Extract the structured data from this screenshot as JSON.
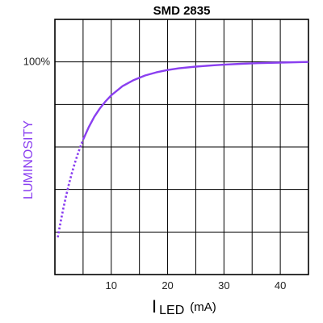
{
  "chart_data": {
    "type": "line",
    "title": "SMD 2835",
    "ylabel": "LUMINOSITY",
    "xlabel": {
      "main": "I",
      "subscript": "LED",
      "unit": "(mA)"
    },
    "xlim": [
      0,
      45
    ],
    "ylim": [
      0,
      120
    ],
    "x_ticks": [
      10,
      20,
      30,
      40
    ],
    "x_tick_labels": [
      "10",
      "20",
      "30",
      "40"
    ],
    "y_ticks": [
      100
    ],
    "y_tick_labels": [
      "100%"
    ],
    "grid": true,
    "curve_color": "#8a3ff0",
    "series": [
      {
        "x": [
          0.5,
          1,
          1.5,
          2,
          2.5,
          3,
          3.5,
          4,
          4.5,
          5,
          6,
          7,
          8,
          9,
          10,
          12,
          14,
          16,
          18,
          20,
          22,
          25,
          28,
          30,
          33,
          36,
          40,
          45
        ],
        "y": [
          17.5,
          24.6,
          31.2,
          37.2,
          42.6,
          47.6,
          52.1,
          56.2,
          60.0,
          63.4,
          69.3,
          74.2,
          78.2,
          81.5,
          84.3,
          88.6,
          91.5,
          93.6,
          95.1,
          96.2,
          97.0,
          97.8,
          98.4,
          98.7,
          99.1,
          99.4,
          99.7,
          100.0
        ],
        "dotted_until_x": 5
      }
    ]
  }
}
